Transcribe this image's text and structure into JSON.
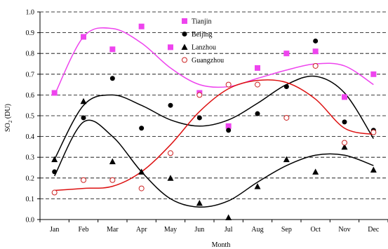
{
  "chart_data": {
    "type": "scatter",
    "xlabel": "Month",
    "ylabel": "SO2 (DU)",
    "ylabel_main": "SO",
    "ylabel_sub": "2",
    "ylabel_unit": " (DU)",
    "categories": [
      "Jan",
      "Feb",
      "Mar",
      "Apr",
      "May",
      "Jun",
      "Jul",
      "Aug",
      "Sep",
      "Oct",
      "Nov",
      "Dec"
    ],
    "ylim": [
      0,
      1.0
    ],
    "yticks": [
      "0.0",
      "0.1",
      "0.2",
      "0.3",
      "0.4",
      "0.5",
      "0.6",
      "0.7",
      "0.8",
      "0.9",
      "1.0"
    ],
    "grid": "dashed horizontal",
    "legend_position": "top-right",
    "series": [
      {
        "name": "Tianjin",
        "marker": "filled-square",
        "color": "#ee44ee",
        "values": [
          0.61,
          0.88,
          0.82,
          0.93,
          0.83,
          0.61,
          0.45,
          0.73,
          0.8,
          0.81,
          0.59,
          0.7
        ],
        "trend_color": "#ee44ee",
        "trend": [
          0.6,
          0.88,
          0.92,
          0.85,
          0.73,
          0.65,
          0.64,
          0.68,
          0.72,
          0.75,
          0.74,
          0.65
        ]
      },
      {
        "name": "Beijing",
        "marker": "filled-circle",
        "color": "#000000",
        "values": [
          0.23,
          0.49,
          0.68,
          0.44,
          0.55,
          0.49,
          0.43,
          0.51,
          0.64,
          0.86,
          0.47,
          0.43
        ],
        "trend_color": "#000000",
        "trend": [
          0.29,
          0.55,
          0.6,
          0.55,
          0.48,
          0.45,
          0.48,
          0.56,
          0.65,
          0.69,
          0.61,
          0.39
        ]
      },
      {
        "name": "Lanzhou",
        "marker": "filled-triangle",
        "color": "#000000",
        "values": [
          0.29,
          0.57,
          0.28,
          0.23,
          0.2,
          0.08,
          0.01,
          0.16,
          0.29,
          0.23,
          0.35,
          0.24
        ],
        "trend_color": "#000000",
        "trend": [
          0.21,
          0.47,
          0.4,
          0.23,
          0.1,
          0.06,
          0.09,
          0.18,
          0.26,
          0.31,
          0.31,
          0.26
        ]
      },
      {
        "name": "Guangzhou",
        "marker": "open-circle",
        "color": "#cc2222",
        "values": [
          0.13,
          0.19,
          0.19,
          0.15,
          0.32,
          0.6,
          0.65,
          0.65,
          0.49,
          0.74,
          0.37,
          0.42
        ],
        "trend_color": "#dd1111",
        "trend": [
          0.14,
          0.15,
          0.16,
          0.23,
          0.36,
          0.52,
          0.63,
          0.67,
          0.66,
          0.58,
          0.44,
          0.41
        ]
      }
    ]
  }
}
